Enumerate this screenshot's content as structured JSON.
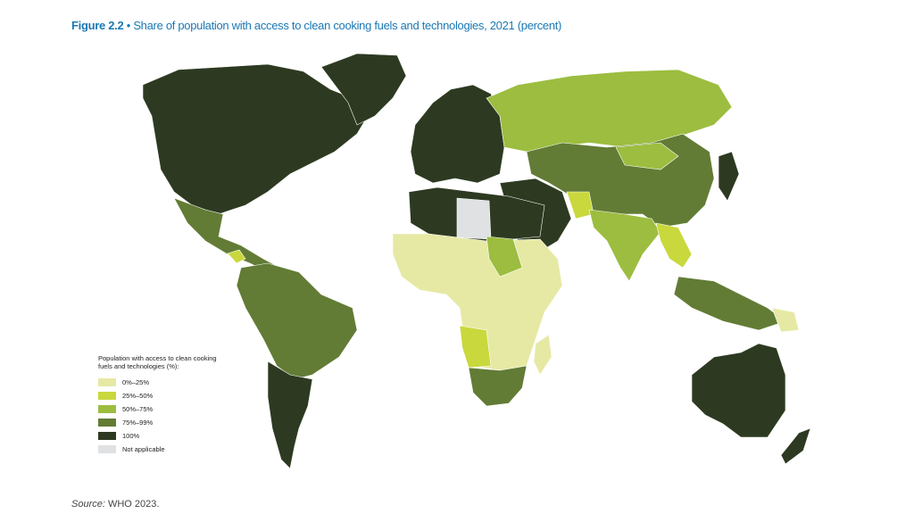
{
  "figure": {
    "label": "Figure 2.2",
    "separator": "•",
    "title": "Share of population with access to clean cooking fuels and technologies, 2021 (percent)"
  },
  "legend": {
    "title": "Population with access to clean cooking fuels and technologies (%):",
    "items": [
      {
        "label": "0%–25%",
        "color": "#e6e9a4"
      },
      {
        "label": "25%–50%",
        "color": "#c9d83c"
      },
      {
        "label": "50%–75%",
        "color": "#9cbd3f"
      },
      {
        "label": "75%–99%",
        "color": "#627c35"
      },
      {
        "label": "100%",
        "color": "#2d3a21"
      },
      {
        "label": "Not applicable",
        "color": "#e0e1e3"
      }
    ]
  },
  "source": {
    "label": "Source:",
    "text": "WHO 2023."
  }
}
